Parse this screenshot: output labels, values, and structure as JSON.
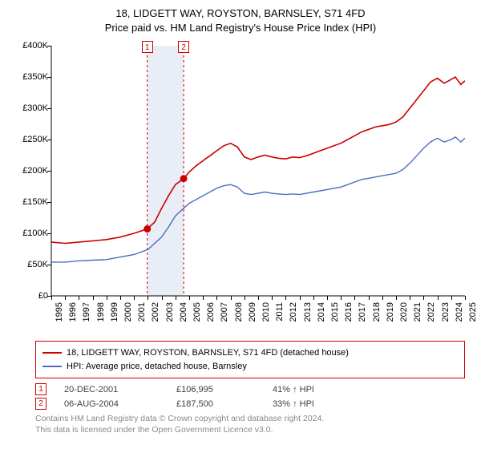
{
  "chart": {
    "type": "line",
    "title_line1": "18, LIDGETT WAY, ROYSTON, BARNSLEY, S71 4FD",
    "title_line2": "Price paid vs. HM Land Registry's House Price Index (HPI)",
    "background_color": "#ffffff",
    "axis_color": "#000000",
    "label_fontsize": 11,
    "x": {
      "min": 1995,
      "max": 2025,
      "ticks": [
        1995,
        1996,
        1997,
        1998,
        1999,
        2000,
        2001,
        2002,
        2003,
        2004,
        2005,
        2006,
        2007,
        2008,
        2009,
        2010,
        2011,
        2012,
        2013,
        2014,
        2015,
        2016,
        2017,
        2018,
        2019,
        2020,
        2021,
        2022,
        2023,
        2024,
        2025
      ]
    },
    "y": {
      "min": 0,
      "max": 400000,
      "step": 50000,
      "tick_labels": [
        "£0",
        "£50K",
        "£100K",
        "£150K",
        "£200K",
        "£250K",
        "£300K",
        "£350K",
        "£400K"
      ]
    },
    "shaded_band": {
      "from": 2001.96,
      "to": 2004.6,
      "fill": "#e9eef6"
    },
    "sale_markers": [
      {
        "n": "1",
        "x": 2001.96,
        "y": 106995
      },
      {
        "n": "2",
        "x": 2004.6,
        "y": 187500
      }
    ],
    "series": [
      {
        "name": "18, LIDGETT WAY, ROYSTON, BARNSLEY, S71 4FD (detached house)",
        "color": "#cc0000",
        "line_width": 1.6,
        "points": [
          [
            1995,
            86000
          ],
          [
            1996,
            84000
          ],
          [
            1997,
            86000
          ],
          [
            1998,
            88000
          ],
          [
            1999,
            90000
          ],
          [
            2000,
            94000
          ],
          [
            2001,
            100000
          ],
          [
            2001.96,
            106995
          ],
          [
            2002.5,
            118000
          ],
          [
            2003,
            140000
          ],
          [
            2003.5,
            160000
          ],
          [
            2004,
            178000
          ],
          [
            2004.6,
            187500
          ],
          [
            2005,
            198000
          ],
          [
            2005.5,
            208000
          ],
          [
            2006,
            216000
          ],
          [
            2006.5,
            224000
          ],
          [
            2007,
            232000
          ],
          [
            2007.5,
            240000
          ],
          [
            2008,
            244000
          ],
          [
            2008.5,
            238000
          ],
          [
            2009,
            222000
          ],
          [
            2009.5,
            218000
          ],
          [
            2010,
            222000
          ],
          [
            2010.5,
            225000
          ],
          [
            2011,
            222000
          ],
          [
            2011.5,
            220000
          ],
          [
            2012,
            219000
          ],
          [
            2012.5,
            222000
          ],
          [
            2013,
            221000
          ],
          [
            2013.5,
            224000
          ],
          [
            2014,
            228000
          ],
          [
            2014.5,
            232000
          ],
          [
            2015,
            236000
          ],
          [
            2015.5,
            240000
          ],
          [
            2016,
            244000
          ],
          [
            2016.5,
            250000
          ],
          [
            2017,
            256000
          ],
          [
            2017.5,
            262000
          ],
          [
            2018,
            266000
          ],
          [
            2018.5,
            270000
          ],
          [
            2019,
            272000
          ],
          [
            2019.5,
            274000
          ],
          [
            2020,
            278000
          ],
          [
            2020.5,
            286000
          ],
          [
            2021,
            300000
          ],
          [
            2021.5,
            314000
          ],
          [
            2022,
            328000
          ],
          [
            2022.5,
            342000
          ],
          [
            2023,
            348000
          ],
          [
            2023.5,
            340000
          ],
          [
            2024,
            346000
          ],
          [
            2024.3,
            350000
          ],
          [
            2024.7,
            338000
          ],
          [
            2025,
            344000
          ]
        ]
      },
      {
        "name": "HPI: Average price, detached house, Barnsley",
        "color": "#4a6fbf",
        "line_width": 1.4,
        "points": [
          [
            1995,
            54000
          ],
          [
            1996,
            54000
          ],
          [
            1997,
            56000
          ],
          [
            1998,
            57000
          ],
          [
            1999,
            58000
          ],
          [
            2000,
            62000
          ],
          [
            2001,
            66000
          ],
          [
            2002,
            74000
          ],
          [
            2003,
            94000
          ],
          [
            2003.5,
            110000
          ],
          [
            2004,
            128000
          ],
          [
            2004.6,
            140000
          ],
          [
            2005,
            148000
          ],
          [
            2005.5,
            154000
          ],
          [
            2006,
            160000
          ],
          [
            2006.5,
            166000
          ],
          [
            2007,
            172000
          ],
          [
            2007.5,
            176000
          ],
          [
            2008,
            178000
          ],
          [
            2008.5,
            174000
          ],
          [
            2009,
            164000
          ],
          [
            2009.5,
            162000
          ],
          [
            2010,
            164000
          ],
          [
            2010.5,
            166000
          ],
          [
            2011,
            164000
          ],
          [
            2011.5,
            163000
          ],
          [
            2012,
            162000
          ],
          [
            2012.5,
            163000
          ],
          [
            2013,
            162000
          ],
          [
            2013.5,
            164000
          ],
          [
            2014,
            166000
          ],
          [
            2014.5,
            168000
          ],
          [
            2015,
            170000
          ],
          [
            2015.5,
            172000
          ],
          [
            2016,
            174000
          ],
          [
            2016.5,
            178000
          ],
          [
            2017,
            182000
          ],
          [
            2017.5,
            186000
          ],
          [
            2018,
            188000
          ],
          [
            2018.5,
            190000
          ],
          [
            2019,
            192000
          ],
          [
            2019.5,
            194000
          ],
          [
            2020,
            196000
          ],
          [
            2020.5,
            202000
          ],
          [
            2021,
            212000
          ],
          [
            2021.5,
            224000
          ],
          [
            2022,
            236000
          ],
          [
            2022.5,
            246000
          ],
          [
            2023,
            252000
          ],
          [
            2023.5,
            246000
          ],
          [
            2024,
            250000
          ],
          [
            2024.3,
            254000
          ],
          [
            2024.7,
            246000
          ],
          [
            2025,
            252000
          ]
        ]
      }
    ]
  },
  "legend": {
    "border_color": "#cc0000",
    "items": [
      {
        "color": "#cc0000",
        "label": "18, LIDGETT WAY, ROYSTON, BARNSLEY, S71 4FD (detached house)"
      },
      {
        "color": "#4a6fbf",
        "label": "HPI: Average price, detached house, Barnsley"
      }
    ]
  },
  "sales_table": {
    "rows": [
      {
        "n": "1",
        "date": "20-DEC-2001",
        "price": "£106,995",
        "hpi": "41% ↑ HPI"
      },
      {
        "n": "2",
        "date": "06-AUG-2004",
        "price": "£187,500",
        "hpi": "33% ↑ HPI"
      }
    ]
  },
  "footer": {
    "line1": "Contains HM Land Registry data © Crown copyright and database right 2024.",
    "line2": "This data is licensed under the Open Government Licence v3.0.",
    "color": "#8a8a8a"
  }
}
